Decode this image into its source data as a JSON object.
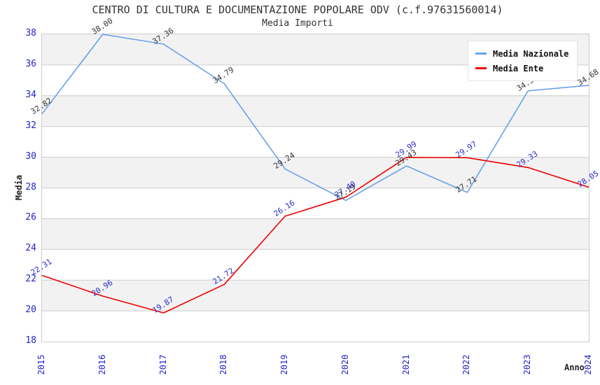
{
  "title": "CENTRO DI CULTURA E DOCUMENTAZIONE POPOLARE ODV (c.f.97631560014)",
  "subtitle": "Media Importi",
  "chart_data": {
    "type": "line",
    "x": [
      2015,
      2016,
      2017,
      2018,
      2019,
      2020,
      2021,
      2022,
      2023,
      2024
    ],
    "series": [
      {
        "name": "Media Nazionale",
        "color": "#6aa1e8",
        "label_color": "#333333",
        "values": [
          32.82,
          38.0,
          37.36,
          34.79,
          29.24,
          27.19,
          29.43,
          27.71,
          34.32,
          34.68
        ]
      },
      {
        "name": "Media Ente",
        "color": "#ee0000",
        "label_color": "#2b2bcb",
        "values": [
          22.31,
          20.96,
          19.87,
          21.72,
          26.16,
          27.4,
          29.99,
          29.97,
          29.33,
          28.05
        ]
      }
    ],
    "xlabel": "Anno",
    "ylabel": "Media",
    "ylim": [
      18,
      38
    ],
    "ytick_step": 2,
    "yticks": [
      18,
      20,
      22,
      24,
      26,
      28,
      30,
      32,
      34,
      36,
      38
    ],
    "grid": true,
    "legend_position": "top-right",
    "band_colors": [
      "#f2f2f2",
      "#ffffff"
    ],
    "grid_color": "#cccccc",
    "tick_color": "#2323cb",
    "value_labels": true,
    "value_label_decimals": 2
  }
}
